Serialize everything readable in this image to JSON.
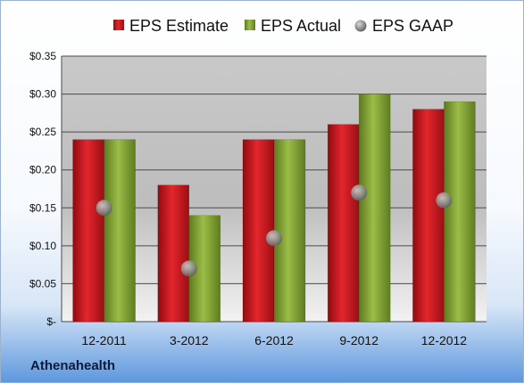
{
  "company": "Athenahealth",
  "chart_data": {
    "type": "bar",
    "categories": [
      "12-2011",
      "3-2012",
      "6-2012",
      "9-2012",
      "12-2012"
    ],
    "series": [
      {
        "name": "EPS Estimate",
        "values": [
          0.24,
          0.18,
          0.24,
          0.26,
          0.28
        ],
        "color": "#c0151b",
        "kind": "bar"
      },
      {
        "name": "EPS Actual",
        "values": [
          0.24,
          0.14,
          0.24,
          0.3,
          0.29
        ],
        "color": "#7a9a2c",
        "kind": "bar"
      },
      {
        "name": "EPS GAAP",
        "values": [
          0.15,
          0.07,
          0.11,
          0.17,
          0.16
        ],
        "color": "#8a8a8a",
        "kind": "marker"
      }
    ],
    "ytick_labels": [
      "$-",
      "$0.05",
      "$0.10",
      "$0.15",
      "$0.20",
      "$0.25",
      "$0.30",
      "$0.35"
    ],
    "ytick_values": [
      0,
      0.05,
      0.1,
      0.15,
      0.2,
      0.25,
      0.3,
      0.35
    ],
    "ylim": [
      0,
      0.35
    ],
    "grid": true,
    "legend_position": "top"
  }
}
